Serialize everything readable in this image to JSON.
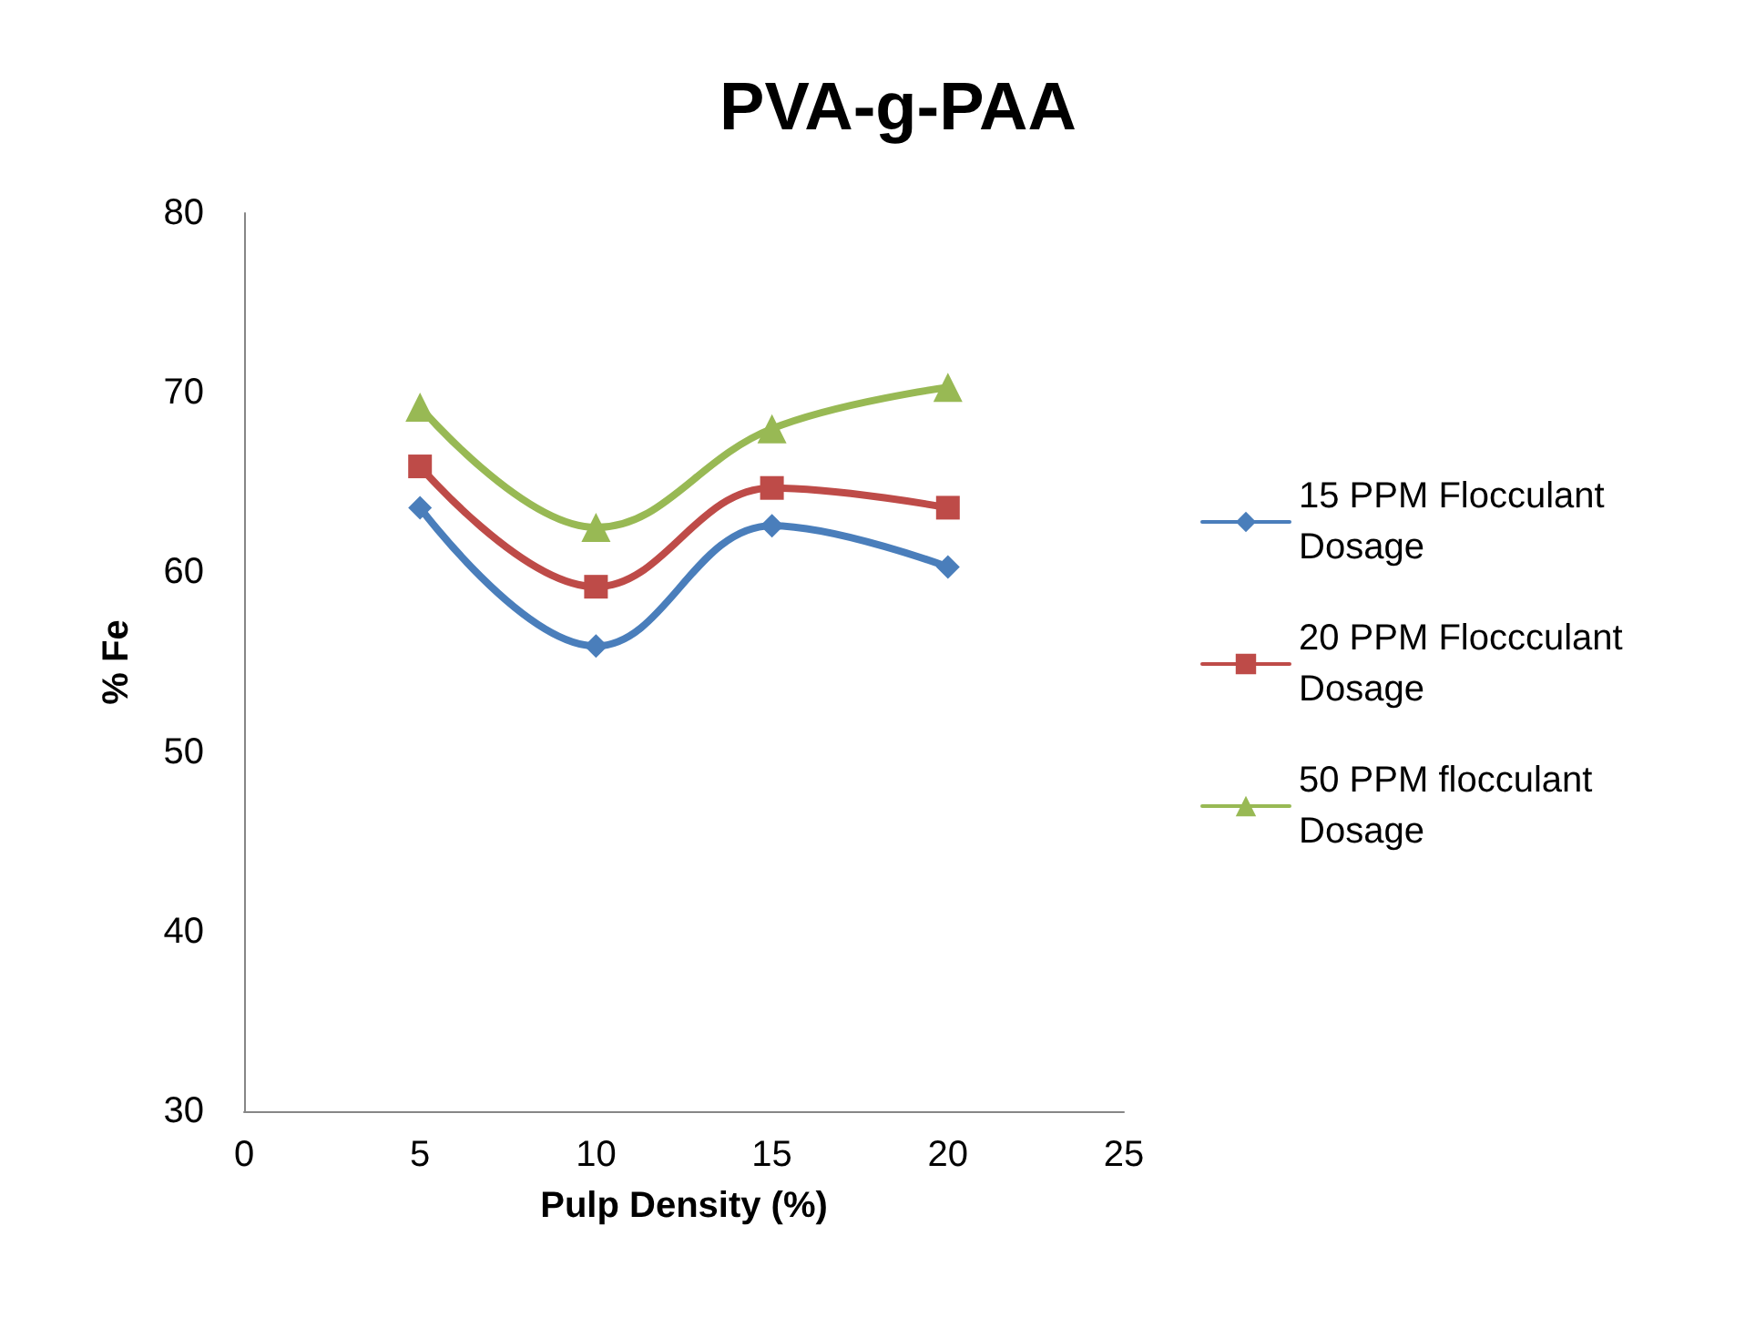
{
  "chart_data": {
    "type": "line",
    "title": "PVA-g-PAA",
    "xlabel": "Pulp Density (%)",
    "ylabel": "% Fe",
    "x": [
      5,
      10,
      15,
      20
    ],
    "series": [
      {
        "name": "15 PPM Flocculant Dosage",
        "color": "#4a7ebb",
        "marker": "diamond",
        "values": [
          63.6,
          55.9,
          62.6,
          60.3
        ]
      },
      {
        "name": "20 PPM Floccculant Dosage",
        "color": "#be4b48",
        "marker": "square",
        "values": [
          65.9,
          59.2,
          64.7,
          63.6
        ]
      },
      {
        "name": "50 PPM flocculant Dosage",
        "color": "#98b954",
        "marker": "triangle",
        "values": [
          69.2,
          62.5,
          68.0,
          70.3
        ]
      }
    ],
    "xlim": [
      0,
      25
    ],
    "xticks": [
      0,
      5,
      10,
      15,
      20,
      25
    ],
    "ylim": [
      30,
      80
    ],
    "yticks": [
      30,
      40,
      50,
      60,
      70,
      80
    ],
    "grid": false,
    "legend": "right",
    "line_style": "solid"
  }
}
